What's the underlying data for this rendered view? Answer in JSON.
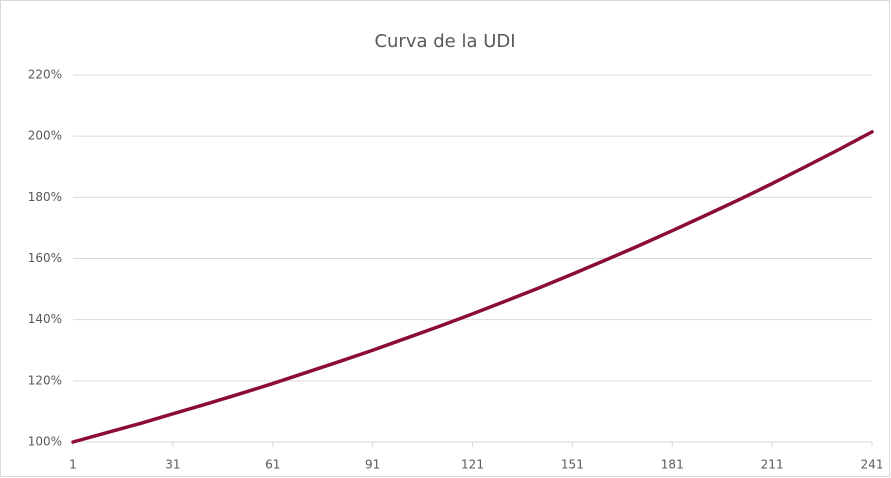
{
  "chart_data": {
    "type": "line",
    "title": "Curva de la UDI",
    "x": [
      1,
      11,
      21,
      31,
      41,
      51,
      61,
      71,
      81,
      91,
      101,
      111,
      121,
      131,
      141,
      151,
      161,
      171,
      181,
      191,
      201,
      211,
      221,
      231,
      241
    ],
    "values": [
      100,
      103.0,
      106.0,
      109.2,
      112.4,
      115.7,
      119.1,
      122.7,
      126.3,
      130.0,
      133.9,
      137.8,
      141.9,
      146.1,
      150.4,
      154.9,
      159.5,
      164.2,
      169.1,
      174.1,
      179.2,
      184.5,
      190.0,
      195.6,
      201.4
    ],
    "color": "#8c0c38",
    "xlim": [
      1,
      241
    ],
    "xticks": [
      1,
      31,
      61,
      91,
      121,
      151,
      181,
      211,
      241
    ],
    "ylim": [
      100,
      220
    ],
    "yticks": [
      {
        "value": 100,
        "label": "100%"
      },
      {
        "value": 120,
        "label": "120%"
      },
      {
        "value": 140,
        "label": "140%"
      },
      {
        "value": 160,
        "label": "160%"
      },
      {
        "value": 180,
        "label": "180%"
      },
      {
        "value": 200,
        "label": "200%"
      },
      {
        "value": 220,
        "label": "220%"
      }
    ],
    "grid": true
  }
}
